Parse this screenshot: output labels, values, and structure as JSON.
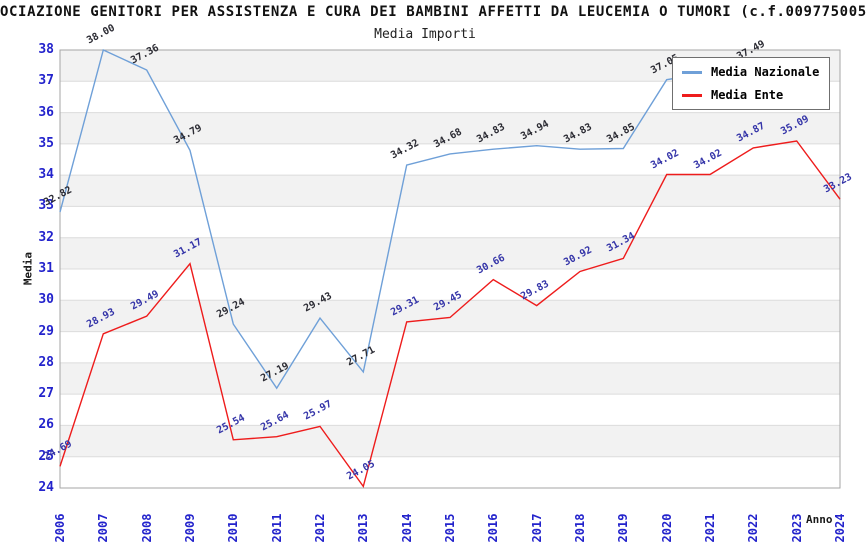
{
  "window": {
    "title": "OCIAZIONE GENITORI PER ASSISTENZA E CURA DEI BAMBINI AFFETTI DA LEUCEMIA O TUMORI (c.f.009775005",
    "subtitle": "Media Importi"
  },
  "colors": {
    "band": "#f2f2f2",
    "grid": "#dcdcdc",
    "frame": "#a6a6a6",
    "tick_text": "#2323cc",
    "nazionale_line": "#6fa0d8",
    "ente_line": "#ee1c1c",
    "nazionale_label": "#2b2b33",
    "ente_label": "#3434a8"
  },
  "legend": {
    "items": [
      {
        "label": "Media Nazionale",
        "color": "#6fa0d8"
      },
      {
        "label": "Media Ente",
        "color": "#ee1c1c"
      }
    ]
  },
  "chart_data": {
    "type": "line",
    "title": "Media Importi",
    "xlabel": "Anno",
    "ylabel": "Media",
    "ylim": [
      24,
      38
    ],
    "y_ticks": [
      38,
      37,
      36,
      35,
      34,
      33,
      32,
      31,
      30,
      29,
      28,
      27,
      26,
      25,
      24
    ],
    "grid": "horizontal-bands-alternating",
    "legend_position": "top-right",
    "categories": [
      "2006",
      "2007",
      "2008",
      "2009",
      "2010",
      "2011",
      "2012",
      "2013",
      "2014",
      "2015",
      "2016",
      "2017",
      "2018",
      "2019",
      "2020",
      "2021",
      "2022",
      "2023",
      "2024"
    ],
    "series": [
      {
        "name": "Media Nazionale",
        "color": "#6fa0d8",
        "label_color": "#2b2b33",
        "values": [
          32.82,
          38.0,
          37.36,
          34.79,
          29.24,
          27.19,
          29.43,
          27.71,
          34.32,
          34.68,
          34.83,
          34.94,
          34.83,
          34.85,
          37.05,
          null,
          37.49,
          null,
          null
        ]
      },
      {
        "name": "Media Ente",
        "color": "#ee1c1c",
        "label_color": "#3434a8",
        "values": [
          24.69,
          28.93,
          29.49,
          31.17,
          25.54,
          25.64,
          25.97,
          24.05,
          29.31,
          29.45,
          30.66,
          29.83,
          30.92,
          31.34,
          34.02,
          34.02,
          34.87,
          35.09,
          33.23
        ]
      }
    ]
  }
}
